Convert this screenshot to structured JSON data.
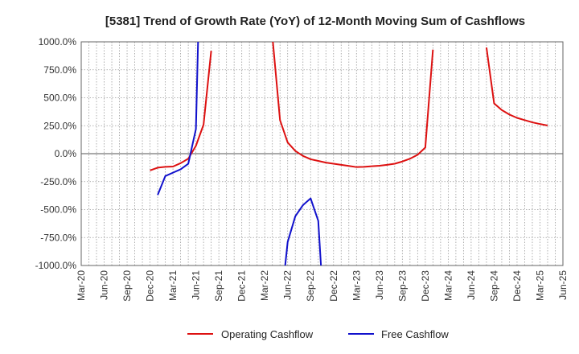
{
  "chart_data": {
    "type": "line",
    "title": "[5381]  Trend of Growth Rate (YoY) of 12-Month Moving Sum of Cashflows",
    "xlabel": "",
    "ylabel": "",
    "ylim": [
      -1000,
      1000
    ],
    "xlim": [
      "2020-03",
      "2025-06"
    ],
    "grid": true,
    "legend_position": "bottom",
    "y_ticks": [
      "1000.0%",
      "750.0%",
      "500.0%",
      "250.0%",
      "0.0%",
      "-250.0%",
      "-500.0%",
      "-750.0%",
      "-1000.0%"
    ],
    "x_ticks": [
      "Mar-20",
      "Jun-20",
      "Sep-20",
      "Dec-20",
      "Mar-21",
      "Jun-21",
      "Sep-21",
      "Dec-21",
      "Mar-22",
      "Jun-22",
      "Sep-22",
      "Dec-22",
      "Mar-23",
      "Jun-23",
      "Sep-23",
      "Dec-23",
      "Mar-24",
      "Jun-24",
      "Sep-24",
      "Dec-24",
      "Mar-25",
      "Jun-25"
    ],
    "series": [
      {
        "name": "Operating Cashflow",
        "color": "#dd1111",
        "points": [
          [
            "2020-12",
            -150
          ],
          [
            "2021-01",
            -125
          ],
          [
            "2021-02",
            -118
          ],
          [
            "2021-03",
            -115
          ],
          [
            "2021-04",
            -85
          ],
          [
            "2021-05",
            -45
          ],
          [
            "2021-06",
            70
          ],
          [
            "2021-07",
            260
          ],
          [
            "2021-08",
            920
          ],
          null,
          [
            "2022-04",
            1050
          ],
          [
            "2022-05",
            300
          ],
          [
            "2022-06",
            100
          ],
          [
            "2022-07",
            25
          ],
          [
            "2022-08",
            -20
          ],
          [
            "2022-09",
            -50
          ],
          [
            "2022-10",
            -65
          ],
          [
            "2022-11",
            -80
          ],
          [
            "2022-12",
            -90
          ],
          [
            "2023-01",
            -100
          ],
          [
            "2023-02",
            -110
          ],
          [
            "2023-03",
            -120
          ],
          [
            "2023-04",
            -118
          ],
          [
            "2023-05",
            -112
          ],
          [
            "2023-06",
            -108
          ],
          [
            "2023-07",
            -100
          ],
          [
            "2023-08",
            -90
          ],
          [
            "2023-09",
            -70
          ],
          [
            "2023-10",
            -45
          ],
          [
            "2023-11",
            -10
          ],
          [
            "2023-12",
            55
          ],
          [
            "2024-01",
            930
          ],
          null,
          [
            "2024-08",
            950
          ],
          [
            "2024-09",
            450
          ],
          [
            "2024-10",
            390
          ],
          [
            "2024-11",
            350
          ],
          [
            "2024-12",
            320
          ],
          [
            "2025-01",
            300
          ],
          [
            "2025-02",
            280
          ],
          [
            "2025-03",
            265
          ],
          [
            "2025-04",
            252
          ]
        ]
      },
      {
        "name": "Free Cashflow",
        "color": "#1111cc",
        "points": [
          [
            "2021-01",
            -370
          ],
          [
            "2021-02",
            -200
          ],
          [
            "2021-03",
            -170
          ],
          [
            "2021-04",
            -140
          ],
          [
            "2021-05",
            -90
          ],
          [
            "2021-06",
            220
          ],
          [
            "2021-06.3",
            1050
          ],
          null,
          [
            "2022-05.6",
            -1050
          ],
          [
            "2022-06",
            -790
          ],
          [
            "2022-07",
            -560
          ],
          [
            "2022-08",
            -460
          ],
          [
            "2022-09",
            -400
          ],
          [
            "2022-10",
            -600
          ],
          [
            "2022-10.4",
            -1050
          ]
        ]
      }
    ]
  }
}
